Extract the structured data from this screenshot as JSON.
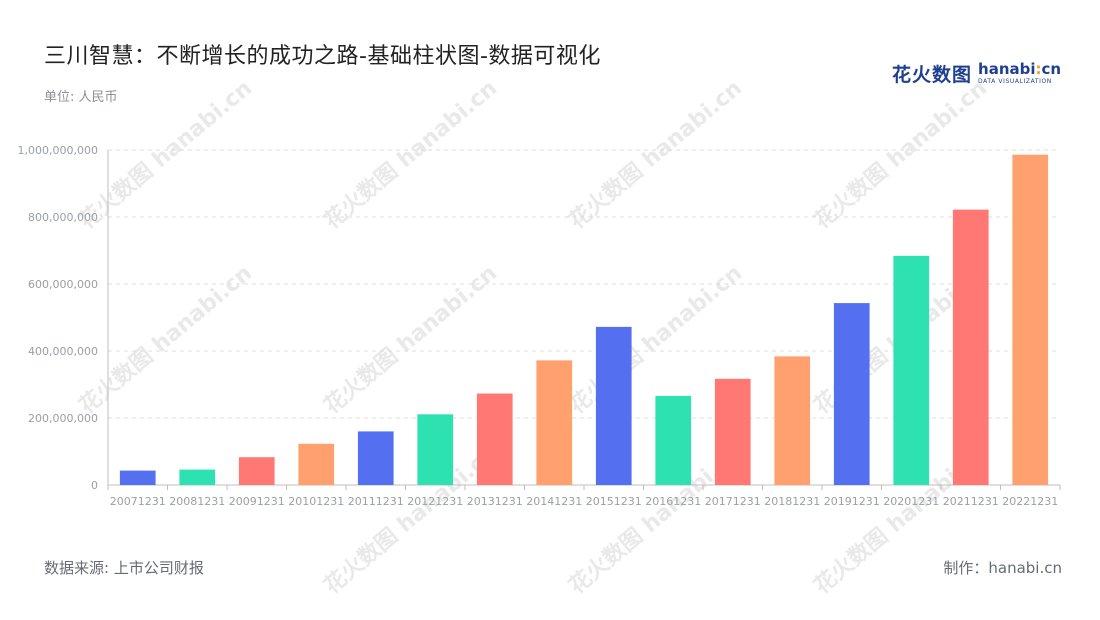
{
  "header": {
    "title": "三川智慧：不断增长的成功之路-基础柱状图-数据可视化",
    "unit": "单位: 人民币"
  },
  "brand": {
    "cn": "花火数图",
    "en_prefix": "hanabi",
    "en_dot": ":",
    "en_suffix": "cn",
    "sub": "DATA VISUALIZATION"
  },
  "footer": {
    "source": "数据来源: 上市公司财报",
    "credit": "制作：hanabi.cn"
  },
  "watermark": "花火数图 hanabi.cn",
  "chart_data": {
    "type": "bar",
    "categories": [
      "20071231",
      "20081231",
      "20091231",
      "20101231",
      "20111231",
      "20121231",
      "20131231",
      "20141231",
      "20151231",
      "20161231",
      "20171231",
      "20181231",
      "20191231",
      "20201231",
      "20211231",
      "20221231"
    ],
    "values": [
      43000000,
      46000000,
      83000000,
      123000000,
      160000000,
      211000000,
      273000000,
      372000000,
      472000000,
      266000000,
      317000000,
      384000000,
      543000000,
      684000000,
      822000000,
      986000000
    ],
    "colors": [
      "#5470f0",
      "#2de2b0",
      "#ff7873",
      "#ffa06e"
    ],
    "ylim": [
      0,
      1000000000
    ],
    "yticks": [
      0,
      200000000,
      400000000,
      600000000,
      800000000,
      1000000000
    ],
    "ytick_labels": [
      "0",
      "200,000,000",
      "400,000,000",
      "600,000,000",
      "800,000,000",
      "1,000,000,000"
    ],
    "grid": true,
    "xlabel": "",
    "ylabel": ""
  }
}
